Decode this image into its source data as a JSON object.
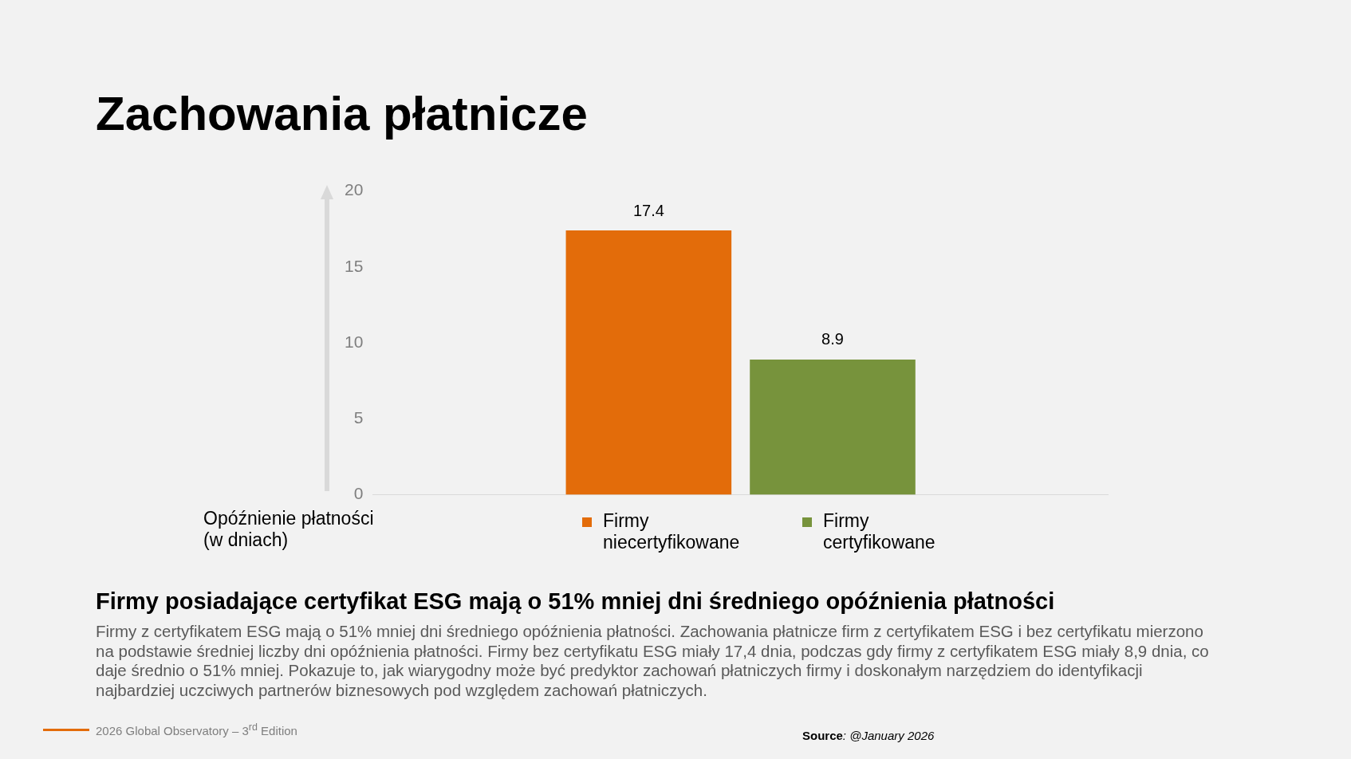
{
  "chart_data": {
    "type": "bar",
    "title": "Zachowania płatnicze",
    "subtitle": "Firmy posiadające certyfikat ESG mają o 51% mniej dni średniego opóźnienia płatności",
    "ylabel": "Opóźnienie płatności (w dniach)",
    "categories": [
      null
    ],
    "series": [
      {
        "name": "Firmy niecertyfikowane",
        "color": "#e36c0a",
        "values": [
          17.4
        ]
      },
      {
        "name": "Firmy certyfikowane",
        "color": "#77933c",
        "values": [
          8.9
        ]
      }
    ],
    "ylim": [
      0,
      20
    ],
    "yticks": [
      0,
      5,
      10,
      15,
      20
    ],
    "grid": false,
    "legend": "bottom",
    "data_labels": true,
    "annotations": [
      "Firmy z certyfikatem ESG mają o 51% mniej dni średniego opóźnienia płatności. Zachowania płatnicze firm z certyfikatem ESG i bez certyfikatu mierzono na podstawie średniej liczby dni opóźnienia płatności. Firmy bez certyfikatu ESG miały 17,4 dnia, podczas gdy firmy z certyfikatem ESG miały 8,9 dnia, co daje średnio o 51% mniej. Pokazuje to, jak wiarygodny może być predyktor zachowań płatniczych firmy i doskonałym narzędziem do identyfikacji najbardziej uczciwych partnerów biznesowych pod względem zachowań płatniczych.",
      "2026 Global Observatory – 3$^{rd}$ Edition",
      "Source: @January 2026"
    ]
  }
}
